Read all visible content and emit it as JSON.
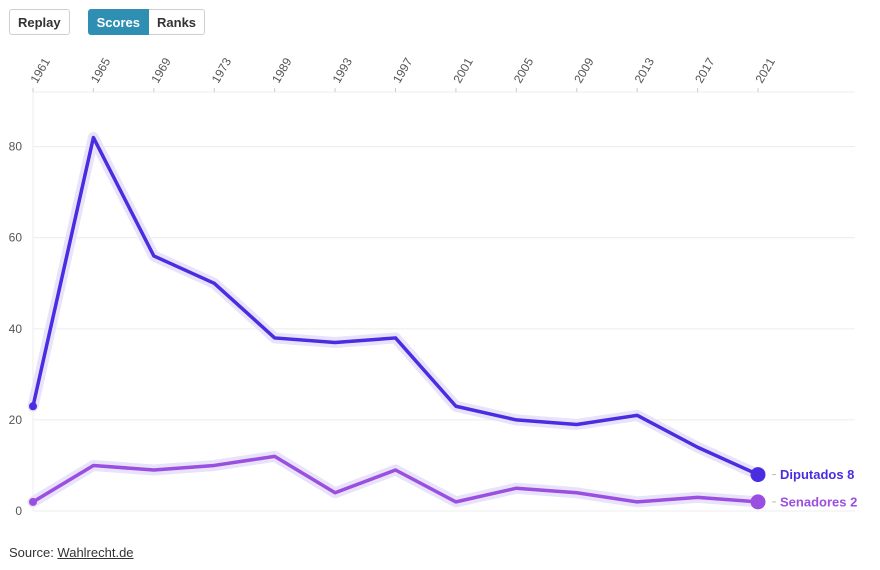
{
  "controls": {
    "replay_label": "Replay",
    "scores_label": "Scores",
    "ranks_label": "Ranks",
    "active": "scores"
  },
  "source": {
    "prefix": "Source: ",
    "link_text": "Wahlrecht.de"
  },
  "colors": {
    "diputados": "#4a2de0",
    "senadores": "#9b4fe0",
    "grid": "#ececec",
    "axis_text": "#555555",
    "halo": "#e9e2fb"
  },
  "chart_data": {
    "type": "line",
    "title": "",
    "xlabel": "",
    "ylabel": "",
    "categories": [
      "1961",
      "1965",
      "1969",
      "1973",
      "1989",
      "1993",
      "1997",
      "2001",
      "2005",
      "2009",
      "2013",
      "2017",
      "2021"
    ],
    "ylim": [
      0,
      92
    ],
    "yticks": [
      0,
      20,
      40,
      60,
      80
    ],
    "grid": true,
    "x_axis_position": "top",
    "series": [
      {
        "name": "Diputados",
        "end_label": "Diputados 8",
        "color_key": "diputados",
        "values": [
          23,
          82,
          56,
          50,
          38,
          37,
          38,
          23,
          20,
          19,
          21,
          14,
          8
        ]
      },
      {
        "name": "Senadores",
        "end_label": "Senadores 2",
        "color_key": "senadores",
        "values": [
          2,
          10,
          9,
          10,
          12,
          4,
          9,
          2,
          5,
          4,
          2,
          3,
          2
        ]
      }
    ]
  }
}
